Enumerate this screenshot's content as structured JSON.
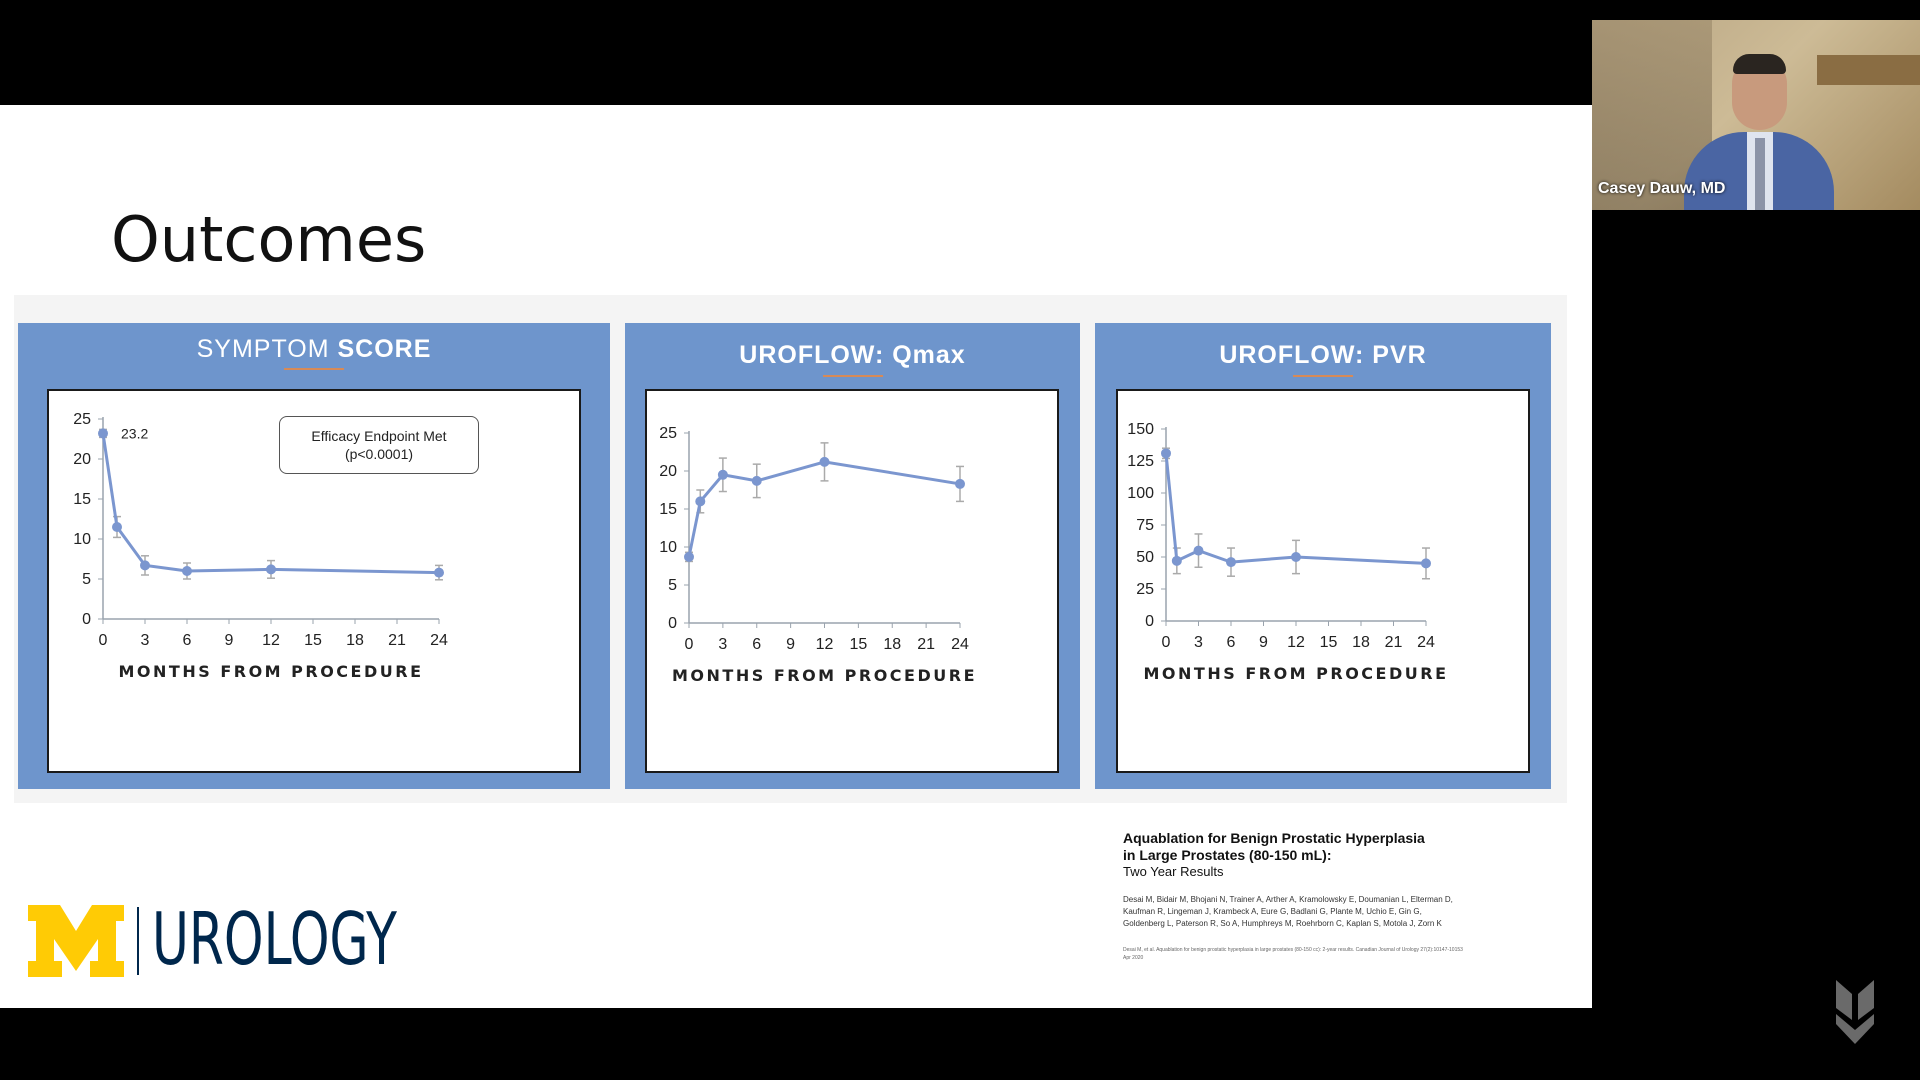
{
  "slide": {
    "title": "Outcomes",
    "panel_color": "#6e95cc",
    "series_color": "#7b96cf"
  },
  "charts": {
    "symptom": {
      "title_normal": "SYMPTOM ",
      "title_bold": "SCORE",
      "annotation_line1": "Efficacy Endpoint Met",
      "annotation_line2": "(p<0.0001)",
      "data_label": "23.2",
      "xlabel": "MONTHS FROM PROCEDURE"
    },
    "qmax": {
      "title": "UROFLOW: Qmax",
      "xlabel": "MONTHS FROM PROCEDURE"
    },
    "pvr": {
      "title": "UROFLOW: PVR",
      "xlabel": "MONTHS FROM PROCEDURE"
    }
  },
  "chart_data": [
    {
      "type": "line",
      "title": "SYMPTOM SCORE",
      "xlabel": "MONTHS FROM PROCEDURE",
      "x": [
        0,
        1,
        3,
        6,
        12,
        24
      ],
      "y": [
        23.2,
        11.5,
        6.7,
        6.0,
        6.2,
        5.8
      ],
      "error": [
        0.5,
        1.3,
        1.2,
        1.0,
        1.1,
        0.9
      ],
      "xticks": [
        0,
        3,
        6,
        9,
        12,
        15,
        18,
        21,
        24
      ],
      "yticks": [
        0,
        5,
        10,
        15,
        20,
        25
      ],
      "xlim": [
        0,
        24
      ],
      "ylim": [
        0,
        25
      ],
      "annotations": [
        "23.2",
        "Efficacy Endpoint Met (p<0.0001)"
      ]
    },
    {
      "type": "line",
      "title": "UROFLOW: Qmax",
      "xlabel": "MONTHS FROM PROCEDURE",
      "x": [
        0,
        1,
        3,
        6,
        12,
        24
      ],
      "y": [
        8.7,
        16.0,
        19.5,
        18.7,
        21.2,
        18.3
      ],
      "error": [
        0.6,
        1.5,
        2.2,
        2.2,
        2.5,
        2.3
      ],
      "xticks": [
        0,
        3,
        6,
        9,
        12,
        15,
        18,
        21,
        24
      ],
      "yticks": [
        0,
        5,
        10,
        15,
        20,
        25
      ],
      "xlim": [
        0,
        24
      ],
      "ylim": [
        0,
        25
      ]
    },
    {
      "type": "line",
      "title": "UROFLOW: PVR",
      "xlabel": "MONTHS FROM PROCEDURE",
      "x": [
        0,
        1,
        3,
        6,
        12,
        24
      ],
      "y": [
        131,
        47,
        55,
        46,
        50,
        45
      ],
      "error": [
        4,
        10,
        13,
        11,
        13,
        12
      ],
      "xticks": [
        0,
        3,
        6,
        9,
        12,
        15,
        18,
        21,
        24
      ],
      "yticks": [
        0,
        25,
        50,
        75,
        100,
        125,
        150
      ],
      "xlim": [
        0,
        24
      ],
      "ylim": [
        0,
        150
      ]
    }
  ],
  "citation": {
    "title_line1": "Aquablation for Benign Prostatic Hyperplasia",
    "title_line2": "in Large Prostates (80-150 mL):",
    "subtitle": "Two Year Results",
    "authors_line1": "Desai M, Bidair M, Bhojani N, Trainer A, Arther A, Kramolowsky E, Doumanian L, Elterman D,",
    "authors_line2": "Kaufman R, Lingeman J, Krambeck A, Eure G, Badlani G, Plante M, Uchio E, Gin G,",
    "authors_line3": "Goldenberg L, Paterson R, So A, Humphreys M, Roehrborn C, Kaplan S, Motola J, Zorn K",
    "journal_line1": "Desai M, et al. Aquablation for benign prostatic hyperplasia in large prostates (80-150 cc): 2-year results. Canadian Journal of Urology 27(2):10147-10153",
    "journal_line2": "Apr 2020"
  },
  "logo": {
    "text": "UROLOGY",
    "block_m_color": "#ffcb05",
    "text_color": "#00274c"
  },
  "video": {
    "participant_name": "Casey Dauw, MD"
  }
}
